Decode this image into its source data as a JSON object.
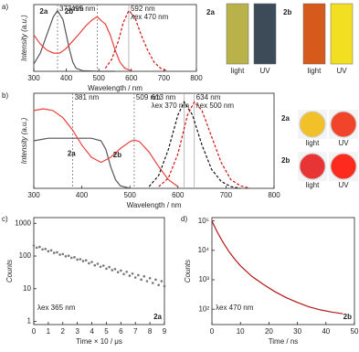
{
  "chart_data": [
    {
      "type": "line",
      "panel": "a)",
      "xlabel": "Wavelength / nm",
      "ylabel": "Intensity (a.u.)",
      "xlim": [
        300,
        800
      ],
      "xticks": [
        300,
        400,
        500,
        600,
        700,
        800
      ],
      "ylim": [
        0,
        1.1
      ],
      "series": [
        {
          "name": "2a",
          "color": "#555555",
          "dashed": false,
          "x": [
            300,
            320,
            340,
            360,
            373,
            390,
            400,
            410,
            420,
            430,
            450,
            500,
            550
          ],
          "values": [
            0.12,
            0.3,
            0.6,
            0.9,
            1.0,
            0.85,
            0.6,
            0.35,
            0.15,
            0.05,
            0.01,
            0,
            0
          ]
        },
        {
          "name": "2b",
          "color": "#e8413c",
          "dashed": false,
          "x": [
            300,
            320,
            340,
            360,
            380,
            400,
            420,
            440,
            460,
            480,
            495,
            510,
            520,
            535,
            550,
            565,
            580,
            600
          ],
          "values": [
            0.6,
            0.45,
            0.35,
            0.3,
            0.3,
            0.38,
            0.5,
            0.62,
            0.75,
            0.85,
            0.9,
            0.82,
            0.78,
            0.6,
            0.35,
            0.15,
            0.05,
            0.01
          ]
        },
        {
          "color": "#d01010",
          "dashed": true,
          "x": [
            520,
            540,
            560,
            575,
            592,
            610,
            630,
            650,
            670,
            690,
            710
          ],
          "values": [
            0.05,
            0.2,
            0.5,
            0.8,
            1.0,
            0.9,
            0.6,
            0.35,
            0.15,
            0.05,
            0.01
          ]
        }
      ],
      "markers": [
        {
          "x": 373,
          "dashed": true,
          "label": [
            "373 nm"
          ]
        },
        {
          "x": 495,
          "dashed": true,
          "label": [
            "495 nm"
          ]
        },
        {
          "x": 592,
          "dashed": false,
          "label": [
            "592 nm",
            "λex 470 nm"
          ]
        }
      ],
      "photo_groups": [
        {
          "name": "2a",
          "captions": [
            "light",
            "UV"
          ]
        },
        {
          "name": "2b",
          "captions": [
            "light",
            "UV"
          ]
        }
      ]
    },
    {
      "type": "line",
      "panel": "b)",
      "xlabel": "Wavelength / nm",
      "ylabel": "Intensity (a.u.)",
      "xlim": [
        300,
        800
      ],
      "xticks": [
        300,
        400,
        500,
        600,
        700,
        800
      ],
      "ylim": [
        0,
        1.1
      ],
      "series": [
        {
          "name": "2a",
          "color": "#555555",
          "dashed": false,
          "x": [
            300,
            330,
            360,
            390,
            420,
            440,
            450,
            460,
            470,
            480,
            500
          ],
          "values": [
            0.55,
            0.58,
            0.58,
            0.58,
            0.58,
            0.55,
            0.45,
            0.25,
            0.1,
            0.03,
            0
          ]
        },
        {
          "name": "2b",
          "color": "#e8413c",
          "dashed": false,
          "x": [
            300,
            320,
            340,
            360,
            380,
            400,
            420,
            440,
            460,
            480,
            500,
            509,
            520,
            540,
            560,
            580,
            600
          ],
          "values": [
            0.9,
            0.92,
            0.9,
            0.82,
            0.68,
            0.5,
            0.36,
            0.3,
            0.36,
            0.46,
            0.54,
            0.56,
            0.54,
            0.42,
            0.25,
            0.1,
            0.02
          ]
        },
        {
          "color": "#111111",
          "dashed": true,
          "x": [
            540,
            560,
            580,
            600,
            613,
            630,
            650,
            670,
            690,
            710,
            730
          ],
          "values": [
            0.02,
            0.15,
            0.45,
            0.85,
            1.0,
            0.85,
            0.5,
            0.22,
            0.08,
            0.02,
            0
          ]
        },
        {
          "color": "#d01010",
          "dashed": true,
          "x": [
            560,
            580,
            600,
            620,
            634,
            650,
            670,
            690,
            710,
            730,
            750
          ],
          "values": [
            0.02,
            0.12,
            0.4,
            0.85,
            1.0,
            0.9,
            0.6,
            0.3,
            0.1,
            0.03,
            0
          ]
        }
      ],
      "markers": [
        {
          "x": 381,
          "dashed": true,
          "label": [
            "381 nm"
          ]
        },
        {
          "x": 509,
          "dashed": true,
          "label": [
            "509 nm"
          ]
        },
        {
          "x": 613,
          "dashed": false,
          "label": [
            "613 nm",
            "λex 370 nm"
          ]
        },
        {
          "x": 634,
          "dashed": false,
          "label": [
            "634 nm",
            "λex 500 nm"
          ]
        }
      ],
      "photo_groups": [
        {
          "name": "2a",
          "captions": [
            "light",
            "UV"
          ]
        },
        {
          "name": "2b",
          "captions": [
            "light",
            "UV"
          ]
        }
      ]
    },
    {
      "type": "scatter",
      "panel": "c)",
      "xlabel": "Time × 10 / μs",
      "ylabel": "Counts",
      "log_y": true,
      "xlim": [
        0,
        9
      ],
      "xticks": [
        0,
        1,
        2,
        3,
        4,
        5,
        6,
        7,
        8,
        9
      ],
      "ylim": [
        0.8,
        1500
      ],
      "yticks": [
        1,
        10,
        100,
        1000
      ],
      "color": "#777777",
      "x": [
        0,
        0.2,
        0.4,
        0.6,
        0.8,
        1,
        1.2,
        1.4,
        1.6,
        1.8,
        2,
        2.2,
        2.4,
        2.6,
        2.8,
        3,
        3.2,
        3.4,
        3.6,
        3.8,
        4,
        4.2,
        4.4,
        4.6,
        4.8,
        5,
        5.2,
        5.4,
        5.6,
        5.8,
        6,
        6.2,
        6.4,
        6.6,
        6.8,
        7,
        7.2,
        7.4,
        7.6,
        7.8,
        8,
        8.2,
        8.4,
        8.6,
        8.8,
        9
      ],
      "values": [
        210,
        180,
        190,
        160,
        165,
        140,
        150,
        125,
        130,
        110,
        115,
        98,
        102,
        88,
        92,
        78,
        80,
        70,
        74,
        60,
        66,
        52,
        58,
        47,
        51,
        41,
        46,
        37,
        40,
        32,
        36,
        28,
        33,
        25,
        29,
        22,
        26,
        19,
        24,
        17,
        21,
        15,
        19,
        13,
        17,
        12
      ],
      "notes": [
        "λex 365 nm",
        "2a"
      ]
    },
    {
      "type": "line",
      "panel": "d)",
      "xlabel": "Time / ns",
      "ylabel": "Counts",
      "log_y": true,
      "xlim": [
        0,
        50
      ],
      "xticks": [
        0,
        10,
        20,
        30,
        40,
        50
      ],
      "ylim": [
        30,
        130000
      ],
      "yticks": [
        {
          "value": 100,
          "label": "10²"
        },
        {
          "value": 1000,
          "label": "10³"
        },
        {
          "value": 10000,
          "label": "10⁴"
        },
        {
          "value": 100000,
          "label": "10⁵"
        }
      ],
      "series": [
        {
          "color": "#b01818",
          "dashed": false,
          "x": [
            0,
            2,
            4,
            6,
            8,
            10,
            14,
            18,
            22,
            26,
            30,
            34,
            38,
            42,
            46
          ],
          "values": [
            100000,
            40000,
            18000,
            9000,
            5000,
            3000,
            1300,
            700,
            400,
            250,
            170,
            120,
            95,
            80,
            70
          ]
        }
      ],
      "notes": [
        "λex 470 nm",
        "2b"
      ]
    }
  ]
}
